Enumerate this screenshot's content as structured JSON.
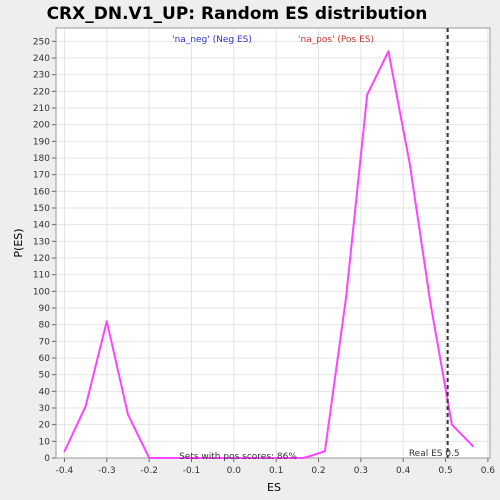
{
  "chart_data": {
    "type": "line",
    "title": "CRX_DN.V1_UP: Random ES distribution",
    "xlabel": "ES",
    "ylabel": "P(ES)",
    "xlim": [
      -0.42,
      0.605
    ],
    "ylim": [
      0,
      258
    ],
    "xticks": [
      -0.4,
      -0.3,
      -0.2,
      -0.1,
      0.0,
      0.1,
      0.2,
      0.3,
      0.4,
      0.5,
      0.6
    ],
    "xtick_labels": [
      "-0.4",
      "-0.3",
      "-0.2",
      "-0.1",
      "0.0",
      "0.1",
      "0.2",
      "0.3",
      "0.4",
      "0.5",
      "0.6"
    ],
    "yticks": [
      0,
      10,
      20,
      30,
      40,
      50,
      60,
      70,
      80,
      90,
      100,
      110,
      120,
      130,
      140,
      150,
      160,
      170,
      180,
      190,
      200,
      210,
      220,
      230,
      240,
      250
    ],
    "grid": true,
    "series": [
      {
        "x": [
          -0.4,
          -0.35,
          -0.3,
          -0.25,
          -0.2,
          -0.15,
          -0.1,
          -0.05,
          0.0,
          0.05,
          0.1,
          0.15,
          0.165,
          0.215,
          0.265,
          0.315,
          0.365,
          0.415,
          0.465,
          0.515,
          0.565
        ],
        "y": [
          4,
          31,
          82,
          26,
          0,
          0,
          0,
          0,
          0,
          0,
          0,
          0,
          0,
          4,
          96,
          218,
          244,
          177,
          92,
          20,
          7
        ],
        "color": "#ff44ff"
      }
    ],
    "legend": [
      {
        "label": "'na_neg' (Neg ES)",
        "color": "#3333cc"
      },
      {
        "label": "'na_pos' (Pos ES)",
        "color": "#cc3333"
      }
    ],
    "real_es": {
      "x": 0.505,
      "label": "Real ES 0.5"
    },
    "annotation": "Sets with pos scores: 86%",
    "colors": {
      "background": "#eeeeee",
      "plot_background": "#ffffff",
      "grid": "#e4e4e4",
      "line": "#ff44ff",
      "real_es_line": "#333333"
    }
  }
}
